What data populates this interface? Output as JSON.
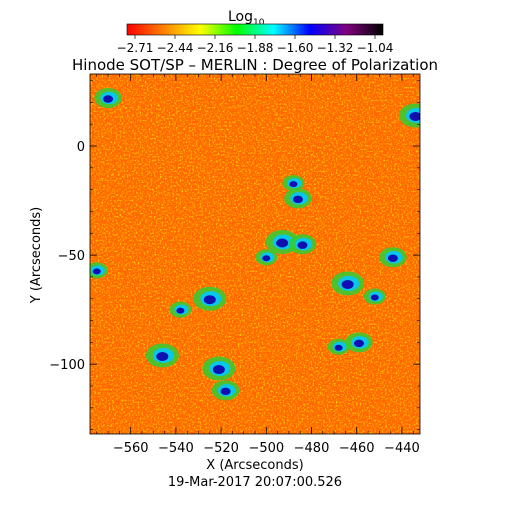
{
  "colorbar": {
    "label_main": "Log",
    "label_sub": "10",
    "ticks": [
      "-2.71",
      "-2.44",
      "-2.16",
      "-1.88",
      "-1.60",
      "-1.32",
      "-1.04"
    ],
    "colors": [
      "#ff0000",
      "#ff8000",
      "#ffff00",
      "#00ff00",
      "#00ffff",
      "#0000ff",
      "#800080",
      "#000000"
    ]
  },
  "chart_data": {
    "type": "heatmap",
    "title": "Hinode SOT/SP – MERLIN : Degree of Polarization",
    "xlabel": "X (Arcseconds)",
    "ylabel": "Y (Arcseconds)",
    "xlim": [
      -578,
      -432
    ],
    "ylim": [
      -132,
      33
    ],
    "x_ticks": [
      -560,
      -540,
      -520,
      -500,
      -480,
      -460,
      -440
    ],
    "y_ticks": [
      0,
      -50,
      -100
    ],
    "x_tick_labels": [
      "−560",
      "−540",
      "−520",
      "−500",
      "−480",
      "−460",
      "−440"
    ],
    "y_tick_labels": [
      "0",
      "−50",
      "−100"
    ],
    "value_range": [
      -2.71,
      -1.04
    ],
    "background_color": "#ff6a00",
    "strong_polarization_regions": [
      {
        "x": -488,
        "y": -17
      },
      {
        "x": -486,
        "y": -24
      },
      {
        "x": -493,
        "y": -44
      },
      {
        "x": -500,
        "y": -51
      },
      {
        "x": -484,
        "y": -45
      },
      {
        "x": -464,
        "y": -63
      },
      {
        "x": -452,
        "y": -69
      },
      {
        "x": -444,
        "y": -51
      },
      {
        "x": -525,
        "y": -70
      },
      {
        "x": -538,
        "y": -75
      },
      {
        "x": -518,
        "y": -112
      },
      {
        "x": -521,
        "y": -102
      },
      {
        "x": -575,
        "y": -57
      },
      {
        "x": -570,
        "y": 22
      },
      {
        "x": -434,
        "y": 14
      },
      {
        "x": -468,
        "y": -92
      },
      {
        "x": -459,
        "y": -90
      },
      {
        "x": -546,
        "y": -96
      }
    ],
    "timestamp": "19-Mar-2017 20:07:00.526"
  }
}
